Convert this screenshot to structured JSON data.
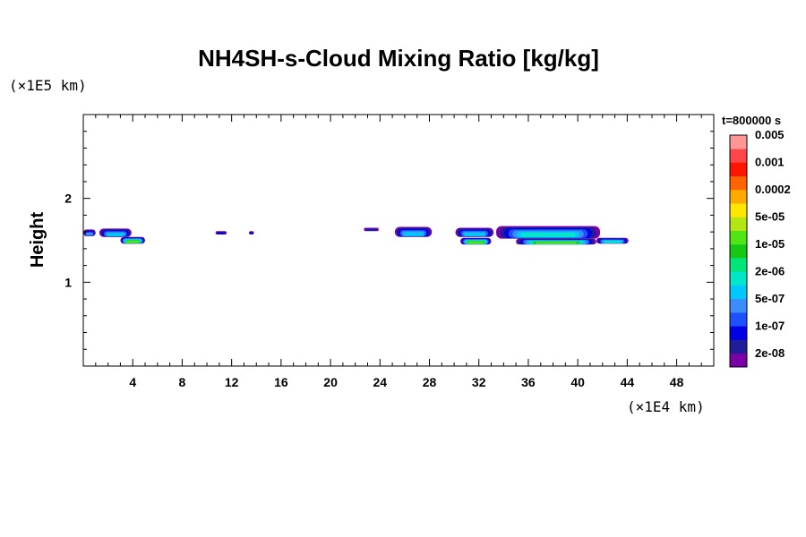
{
  "chart_data": {
    "type": "heatmap",
    "title": "NH4SH-s-Cloud Mixing Ratio [kg/kg]",
    "ylabel": "Height",
    "x_unit": "(×1E4 km)",
    "y_unit": "(×1E5 km)",
    "time_label": "t=800000 s",
    "xlim": [
      0,
      51
    ],
    "ylim": [
      0,
      3
    ],
    "x_ticks": [
      4,
      8,
      12,
      16,
      20,
      24,
      28,
      32,
      36,
      40,
      44,
      48
    ],
    "y_ticks": [
      1,
      2
    ],
    "colorbar": {
      "colors": [
        "#7b00a8",
        "#1e1e9a",
        "#0000e6",
        "#1e50ff",
        "#3a8cff",
        "#00c8ff",
        "#00e6c8",
        "#00e678",
        "#14c814",
        "#50e614",
        "#b4e614",
        "#ffe600",
        "#ffaa00",
        "#ff6400",
        "#ff1400",
        "#ff4646",
        "#ff9696"
      ],
      "labels": [
        "2e-08",
        "1e-07",
        "5e-07",
        "2e-06",
        "1e-05",
        "5e-05",
        "0.0002",
        "0.001",
        "0.005"
      ]
    },
    "cloud_bands": [
      {
        "x_start": 0.0,
        "x_end": 1.0,
        "y_bottom": 1.55,
        "y_top": 1.63,
        "max_level": 4
      },
      {
        "x_start": 1.3,
        "x_end": 3.9,
        "y_bottom": 1.54,
        "y_top": 1.64,
        "max_level": 5
      },
      {
        "x_start": 3.0,
        "x_end": 5.0,
        "y_bottom": 1.46,
        "y_top": 1.54,
        "max_level": 9
      },
      {
        "x_start": 10.7,
        "x_end": 11.6,
        "y_bottom": 1.57,
        "y_top": 1.61,
        "max_level": 2
      },
      {
        "x_start": 13.4,
        "x_end": 13.8,
        "y_bottom": 1.57,
        "y_top": 1.61,
        "max_level": 2
      },
      {
        "x_start": 22.7,
        "x_end": 23.9,
        "y_bottom": 1.61,
        "y_top": 1.65,
        "max_level": 1
      },
      {
        "x_start": 25.2,
        "x_end": 28.2,
        "y_bottom": 1.54,
        "y_top": 1.66,
        "max_level": 5
      },
      {
        "x_start": 30.1,
        "x_end": 33.2,
        "y_bottom": 1.54,
        "y_top": 1.65,
        "max_level": 5
      },
      {
        "x_start": 30.5,
        "x_end": 33.0,
        "y_bottom": 1.45,
        "y_top": 1.53,
        "max_level": 9
      },
      {
        "x_start": 33.4,
        "x_end": 41.8,
        "y_bottom": 1.52,
        "y_top": 1.67,
        "max_level": 6
      },
      {
        "x_start": 35.0,
        "x_end": 41.5,
        "y_bottom": 1.45,
        "y_top": 1.52,
        "max_level": 9
      },
      {
        "x_start": 41.5,
        "x_end": 44.1,
        "y_bottom": 1.46,
        "y_top": 1.53,
        "max_level": 6
      }
    ]
  }
}
